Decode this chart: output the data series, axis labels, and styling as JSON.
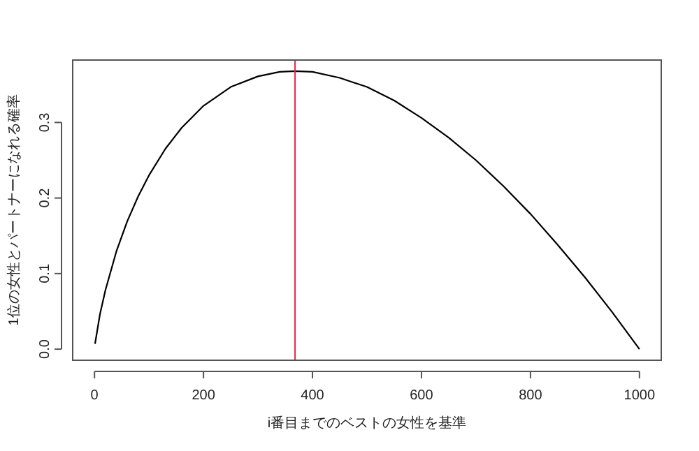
{
  "chart_data": {
    "type": "line",
    "xlabel": "i番目までのベストの女性を基準",
    "ylabel": "1位の女性とパートナーになれる確率",
    "x": [
      1,
      10,
      20,
      40,
      60,
      80,
      100,
      130,
      160,
      200,
      250,
      300,
      340,
      368,
      400,
      450,
      500,
      550,
      600,
      650,
      700,
      750,
      800,
      850,
      900,
      950,
      1000
    ],
    "series": [
      {
        "color": "#000000",
        "values": [
          0.007,
          0.046,
          0.078,
          0.129,
          0.169,
          0.202,
          0.23,
          0.265,
          0.293,
          0.322,
          0.347,
          0.361,
          0.367,
          0.368,
          0.367,
          0.359,
          0.347,
          0.329,
          0.306,
          0.28,
          0.25,
          0.216,
          0.179,
          0.138,
          0.095,
          0.049,
          0.0
        ]
      }
    ],
    "xlim": [
      -40,
      1040
    ],
    "ylim": [
      -0.0147,
      0.3826
    ],
    "xticks": [
      0,
      200,
      400,
      600,
      800,
      1000
    ],
    "yticks": [
      {
        "value": 0,
        "label": "0.0"
      },
      0.1,
      0.2,
      0.3
    ],
    "ref_lines": [
      {
        "axis": "x",
        "value": 368,
        "color": "#e0284a"
      }
    ],
    "grid": false,
    "marker": "none",
    "line_style": "solid"
  }
}
